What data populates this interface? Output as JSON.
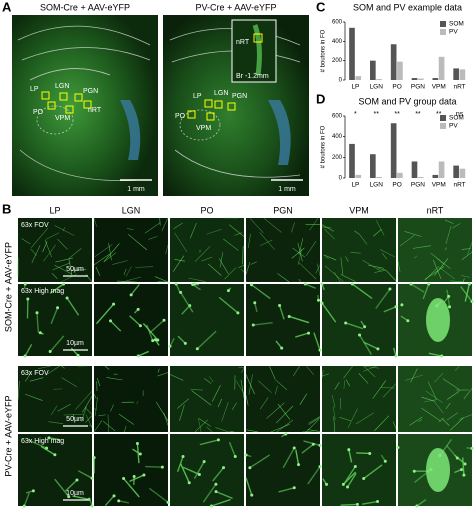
{
  "panel_labels": [
    "A",
    "B",
    "C",
    "D"
  ],
  "panel_a": {
    "titles": [
      "SOM-Cre + AAV-eYFP",
      "PV-Cre + AAV-eYFP"
    ],
    "regions_left": [
      "LP",
      "LGN",
      "PGN",
      "PO",
      "VPM",
      "nRT"
    ],
    "regions_right": [
      "LP",
      "LGN",
      "PGN",
      "PO",
      "VPM"
    ],
    "inset": {
      "label": "nRT",
      "level": "Br -1.2mm"
    },
    "scale_bar": "1 mm"
  },
  "panel_b": {
    "columns": [
      "LP",
      "LGN",
      "PO",
      "PGN",
      "VPM",
      "nRT"
    ],
    "groups": [
      {
        "label": "SOM-Cre + AAV-eYFP",
        "views": [
          "63x FOV",
          "63x High mag"
        ],
        "scales": [
          "50µm",
          "10µm"
        ]
      },
      {
        "label": "PV-Cre + AAV-eYFP",
        "views": [
          "63x FOV",
          "63x High mag"
        ],
        "scales": [
          "50µm",
          "10µm"
        ]
      }
    ]
  },
  "chart_data": [
    {
      "type": "bar",
      "title": "SOM and PV example data",
      "ylabel": "# boutons in FO",
      "categories": [
        "LP",
        "LGN",
        "PO",
        "PGN",
        "VPM",
        "nRT"
      ],
      "series": [
        {
          "name": "SOM",
          "color": "#555555",
          "values": [
            540,
            200,
            370,
            20,
            20,
            120
          ]
        },
        {
          "name": "PV",
          "color": "#bbbbbb",
          "values": [
            40,
            10,
            190,
            15,
            240,
            110
          ]
        }
      ],
      "ylim": [
        0,
        600
      ],
      "yticks": [
        0,
        200,
        400,
        600
      ],
      "legend": "upper-right"
    },
    {
      "type": "bar",
      "title": "SOM and PV group data",
      "ylabel": "# boutons in FO",
      "categories": [
        "LP",
        "LGN",
        "PO",
        "PGN",
        "VPM",
        "nRT"
      ],
      "series": [
        {
          "name": "SOM",
          "color": "#555555",
          "values": [
            330,
            230,
            530,
            160,
            30,
            120
          ]
        },
        {
          "name": "PV",
          "color": "#bbbbbb",
          "values": [
            30,
            10,
            50,
            10,
            160,
            90
          ]
        }
      ],
      "annotations": [
        "*",
        "**",
        "**",
        "**",
        "**",
        "ns"
      ],
      "ylim": [
        0,
        600
      ],
      "yticks": [
        0,
        200,
        400,
        600
      ],
      "legend": "upper-right"
    }
  ]
}
